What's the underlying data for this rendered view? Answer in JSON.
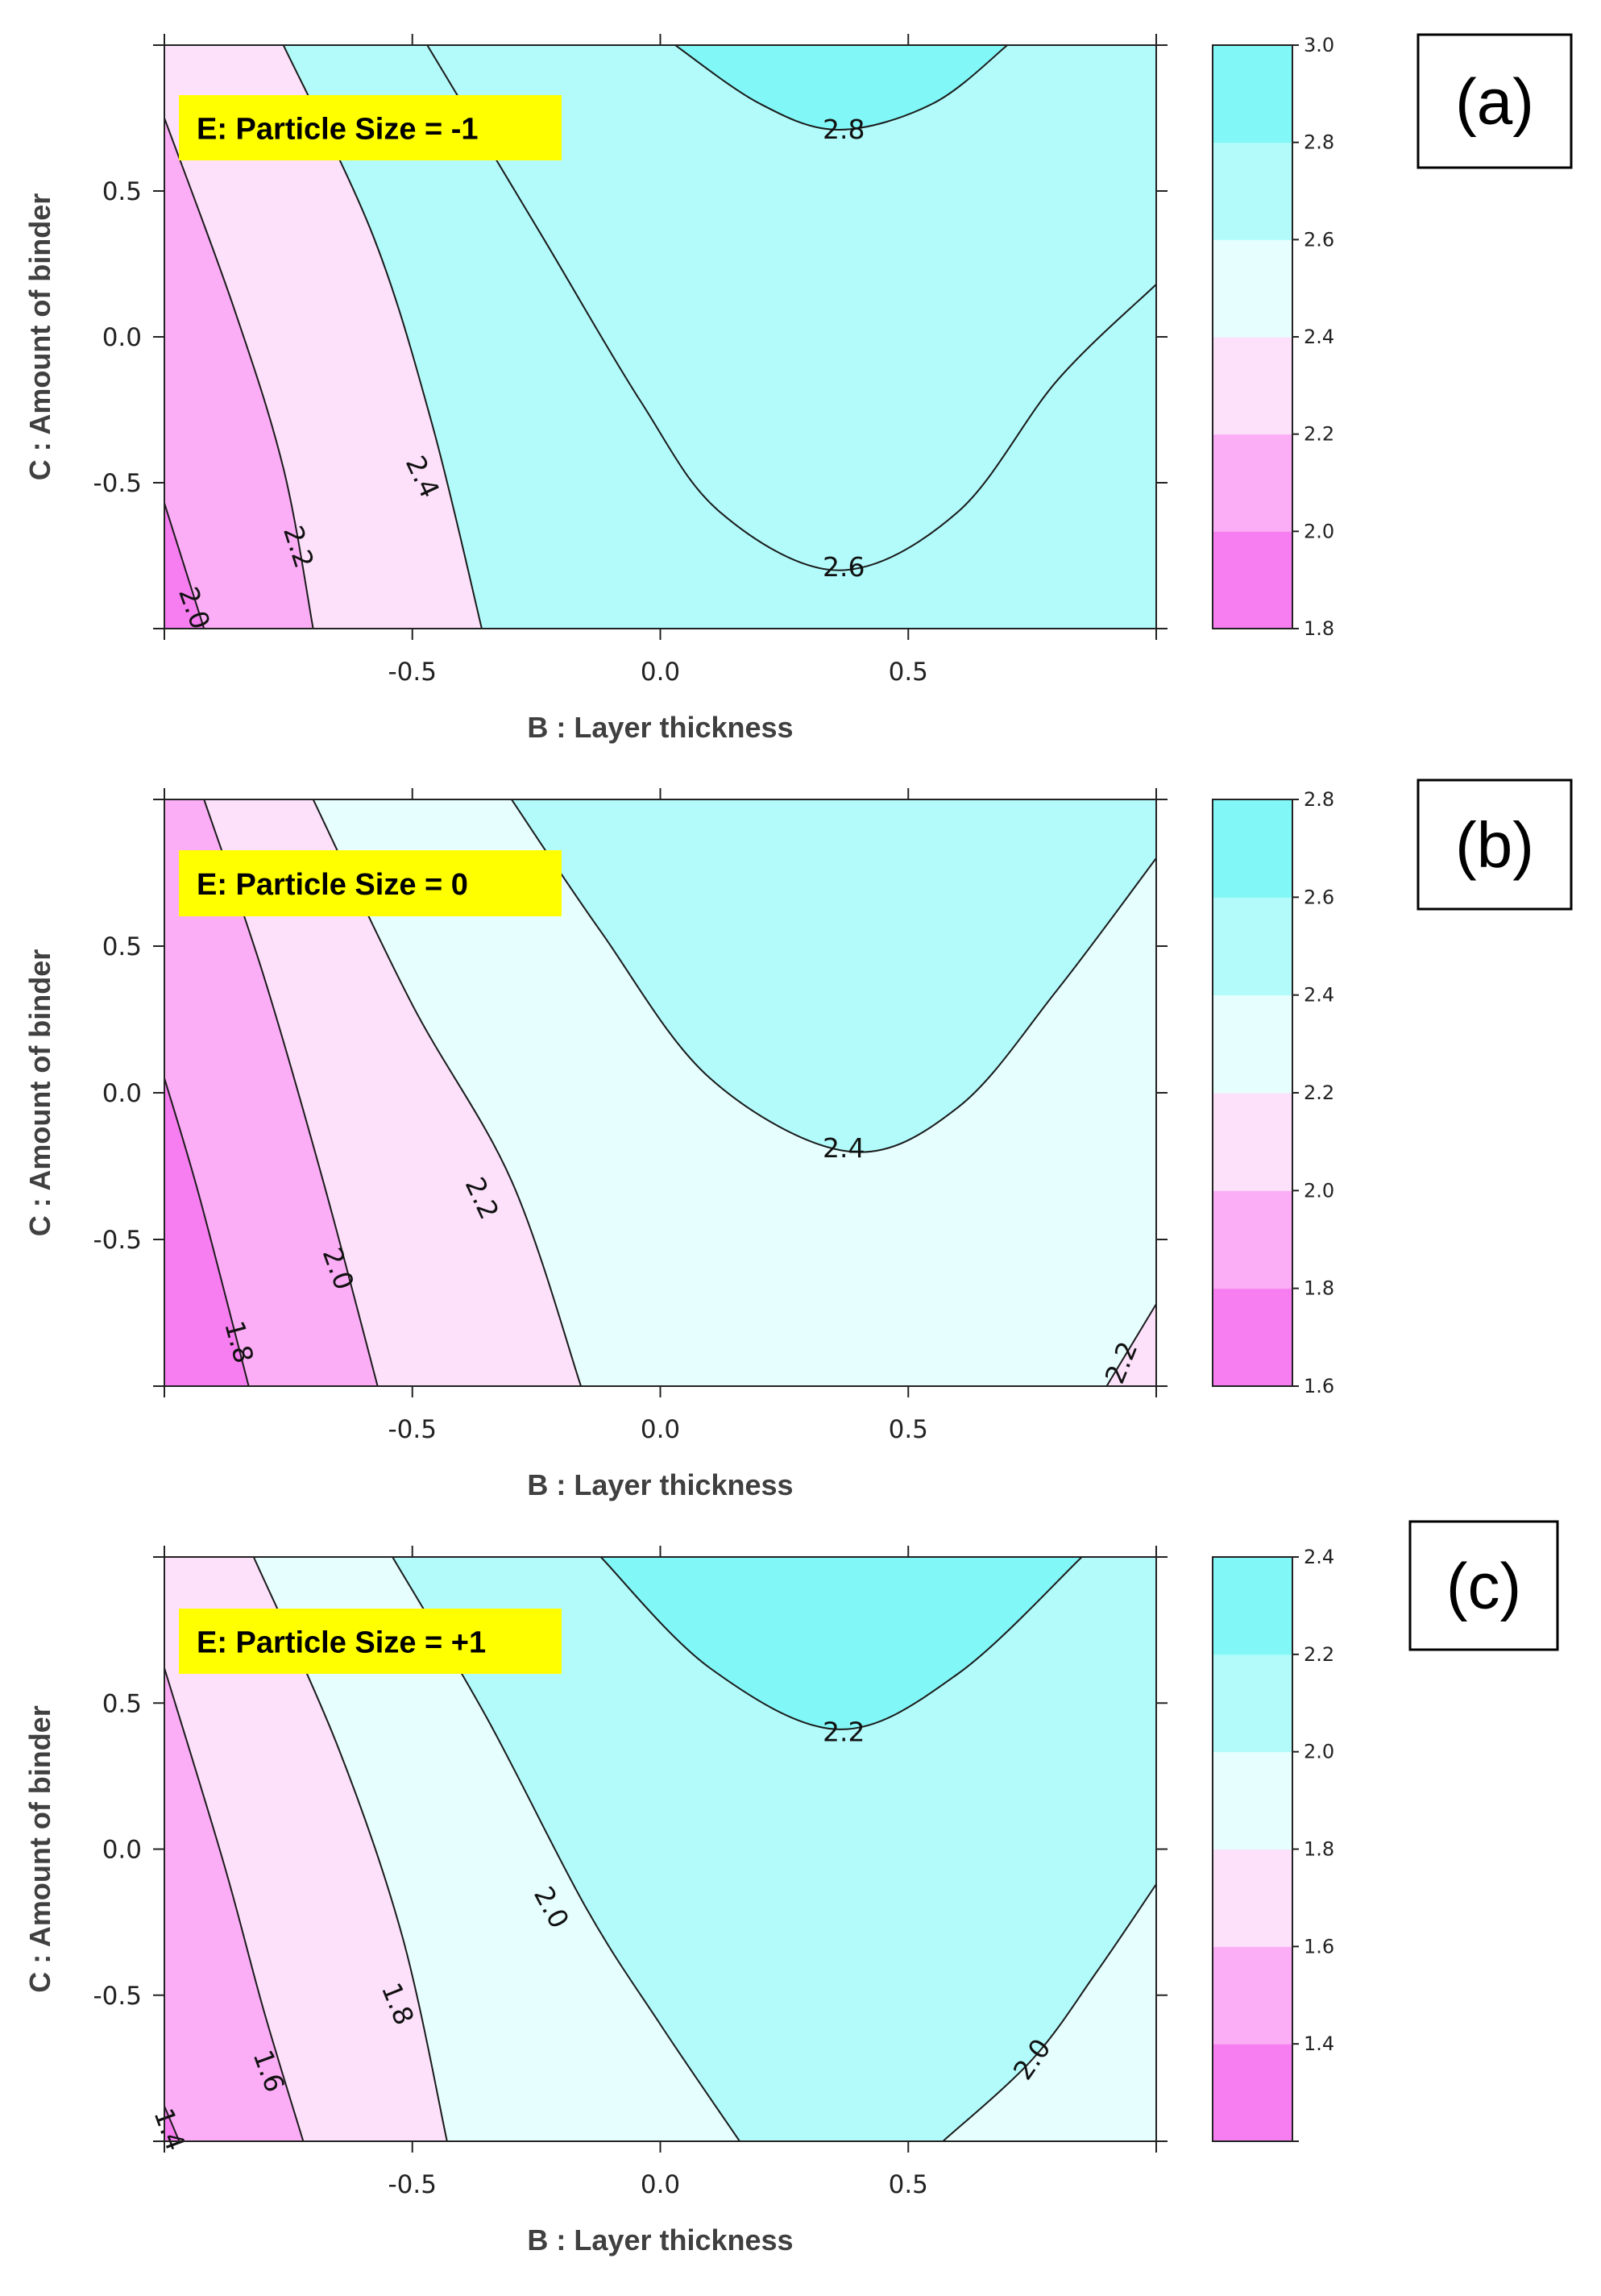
{
  "chart_data": [
    {
      "type": "contour",
      "panel": "(a)",
      "annotation": "E: Particle Size = -1",
      "xlabel": "B : Layer thickness",
      "ylabel": "C : Amount of binder",
      "xlim": [
        -1,
        1
      ],
      "ylim": [
        -1,
        1
      ],
      "xticks": [
        "-0.5",
        "0.0",
        "0.5"
      ],
      "yticks": [
        "-0.5",
        "0.0",
        "0.5"
      ],
      "colorbar": {
        "levels": [
          1.8,
          2.0,
          2.2,
          2.4,
          2.6,
          2.8,
          3.0
        ],
        "labels": [
          "1.8",
          "2.0",
          "2.2",
          "2.4",
          "2.6",
          "2.8",
          "3.0"
        ],
        "colors": [
          "#f77ef0",
          "#fbaef6",
          "#fde1fb",
          "#e6fefe",
          "#b3fbfb",
          "#82f7f7"
        ]
      },
      "contours": [
        {
          "level": "2.0",
          "points": [
            [
              -1.0,
              -0.57
            ],
            [
              -0.92,
              -1.0
            ]
          ]
        },
        {
          "level": "2.2",
          "points": [
            [
              -1.0,
              0.75
            ],
            [
              -0.86,
              0.1
            ],
            [
              -0.76,
              -0.45
            ],
            [
              -0.7,
              -1.0
            ]
          ]
        },
        {
          "level": "2.4",
          "points": [
            [
              -0.76,
              1.0
            ],
            [
              -0.58,
              0.35
            ],
            [
              -0.46,
              -0.3
            ],
            [
              -0.36,
              -1.0
            ]
          ]
        },
        {
          "level": "2.6",
          "points": [
            [
              -0.47,
              1.0
            ],
            [
              -0.24,
              0.35
            ],
            [
              -0.04,
              -0.22
            ],
            [
              0.12,
              -0.6
            ],
            [
              0.36,
              -0.8
            ],
            [
              0.6,
              -0.6
            ],
            [
              0.8,
              -0.15
            ],
            [
              1.0,
              0.18
            ]
          ]
        },
        {
          "level": "2.8",
          "points": [
            [
              0.03,
              1.0
            ],
            [
              0.2,
              0.8
            ],
            [
              0.36,
              0.71
            ],
            [
              0.55,
              0.8
            ],
            [
              0.7,
              1.0
            ]
          ]
        }
      ],
      "contour_labels": [
        {
          "text": "2.0",
          "x": -0.94,
          "y": -0.93,
          "angle": 70
        },
        {
          "text": "2.2",
          "x": -0.73,
          "y": -0.72,
          "angle": 72
        },
        {
          "text": "2.4",
          "x": -0.48,
          "y": -0.48,
          "angle": 65
        },
        {
          "text": "2.6",
          "x": 0.37,
          "y": -0.79,
          "angle": 0
        },
        {
          "text": "2.8",
          "x": 0.37,
          "y": 0.71,
          "angle": 0
        }
      ]
    },
    {
      "type": "contour",
      "panel": "(b)",
      "annotation": "E: Particle Size = 0",
      "xlabel": "B : Layer thickness",
      "ylabel": "C : Amount of binder",
      "xlim": [
        -1,
        1
      ],
      "ylim": [
        -1,
        1
      ],
      "xticks": [
        "-0.5",
        "0.0",
        "0.5"
      ],
      "yticks": [
        "-0.5",
        "0.0",
        "0.5"
      ],
      "colorbar": {
        "levels": [
          1.6,
          1.8,
          2.0,
          2.2,
          2.4,
          2.6,
          2.8
        ],
        "labels": [
          "1.6",
          "1.8",
          "2.0",
          "2.2",
          "2.4",
          "2.6",
          "2.8"
        ],
        "colors": [
          "#f77ef0",
          "#fbaef6",
          "#fde1fb",
          "#e6fefe",
          "#b3fbfb",
          "#82f7f7"
        ]
      },
      "contours": [
        {
          "level": "1.8",
          "points": [
            [
              -1.0,
              0.05
            ],
            [
              -0.93,
              -0.35
            ],
            [
              -0.83,
              -1.0
            ]
          ]
        },
        {
          "level": "2.0",
          "points": [
            [
              -0.92,
              1.0
            ],
            [
              -0.8,
              0.4
            ],
            [
              -0.68,
              -0.3
            ],
            [
              -0.57,
              -1.0
            ]
          ]
        },
        {
          "level": "2.2",
          "points": [
            [
              -0.7,
              1.0
            ],
            [
              -0.5,
              0.3
            ],
            [
              -0.3,
              -0.3
            ],
            [
              -0.16,
              -1.0
            ]
          ]
        },
        {
          "level": "2.2",
          "points": [
            [
              0.9,
              -1.0
            ],
            [
              1.0,
              -0.72
            ]
          ]
        },
        {
          "level": "2.4",
          "points": [
            [
              -0.3,
              1.0
            ],
            [
              -0.12,
              0.55
            ],
            [
              0.1,
              0.05
            ],
            [
              0.38,
              -0.2
            ],
            [
              0.6,
              -0.05
            ],
            [
              0.8,
              0.35
            ],
            [
              1.0,
              0.8
            ]
          ]
        }
      ],
      "contour_labels": [
        {
          "text": "1.8",
          "x": -0.85,
          "y": -0.85,
          "angle": 75
        },
        {
          "text": "2.0",
          "x": -0.65,
          "y": -0.6,
          "angle": 70
        },
        {
          "text": "2.2",
          "x": -0.36,
          "y": -0.36,
          "angle": 65
        },
        {
          "text": "2.4",
          "x": 0.37,
          "y": -0.19,
          "angle": 0
        },
        {
          "text": "2.2",
          "x": 0.93,
          "y": -0.92,
          "angle": -68
        }
      ]
    },
    {
      "type": "contour",
      "panel": "(c)",
      "annotation": "E: Particle Size = +1",
      "xlabel": "B : Layer thickness",
      "ylabel": "C : Amount of binder",
      "xlim": [
        -1,
        1
      ],
      "ylim": [
        -1,
        1
      ],
      "xticks": [
        "-0.5",
        "0.0",
        "0.5"
      ],
      "yticks": [
        "-0.5",
        "0.0",
        "0.5"
      ],
      "colorbar": {
        "levels": [
          1.2,
          1.4,
          1.6,
          1.8,
          2.0,
          2.2,
          2.4
        ],
        "labels": [
          "",
          "1.4",
          "1.6",
          "1.8",
          "2.0",
          "2.2",
          "2.4"
        ],
        "colors": [
          "#f77ef0",
          "#fbaef6",
          "#fde1fb",
          "#e6fefe",
          "#b3fbfb",
          "#82f7f7"
        ]
      },
      "contours": [
        {
          "level": "1.4",
          "points": [
            [
              -1.0,
              -0.88
            ],
            [
              -0.97,
              -1.0
            ]
          ]
        },
        {
          "level": "1.6",
          "points": [
            [
              -1.0,
              0.62
            ],
            [
              -0.88,
              -0.05
            ],
            [
              -0.8,
              -0.55
            ],
            [
              -0.72,
              -1.0
            ]
          ]
        },
        {
          "level": "1.8",
          "points": [
            [
              -0.82,
              1.0
            ],
            [
              -0.65,
              0.35
            ],
            [
              -0.52,
              -0.3
            ],
            [
              -0.43,
              -1.0
            ]
          ]
        },
        {
          "level": "2.0",
          "points": [
            [
              -0.54,
              1.0
            ],
            [
              -0.35,
              0.45
            ],
            [
              -0.15,
              -0.2
            ],
            [
              0.0,
              -0.6
            ],
            [
              0.16,
              -1.0
            ]
          ]
        },
        {
          "level": "2.0",
          "points": [
            [
              0.57,
              -1.0
            ],
            [
              0.75,
              -0.72
            ],
            [
              0.88,
              -0.42
            ],
            [
              1.0,
              -0.12
            ]
          ]
        },
        {
          "level": "2.2",
          "points": [
            [
              -0.12,
              1.0
            ],
            [
              0.1,
              0.62
            ],
            [
              0.36,
              0.41
            ],
            [
              0.6,
              0.6
            ],
            [
              0.85,
              1.0
            ]
          ]
        }
      ],
      "contour_labels": [
        {
          "text": "1.4",
          "x": -0.99,
          "y": -0.96,
          "angle": 70
        },
        {
          "text": "1.6",
          "x": -0.79,
          "y": -0.76,
          "angle": 70
        },
        {
          "text": "1.8",
          "x": -0.53,
          "y": -0.53,
          "angle": 68
        },
        {
          "text": "2.0",
          "x": -0.22,
          "y": -0.2,
          "angle": 62
        },
        {
          "text": "2.2",
          "x": 0.37,
          "y": 0.4,
          "angle": 0
        },
        {
          "text": "2.0",
          "x": 0.75,
          "y": -0.72,
          "angle": -55
        }
      ]
    }
  ]
}
